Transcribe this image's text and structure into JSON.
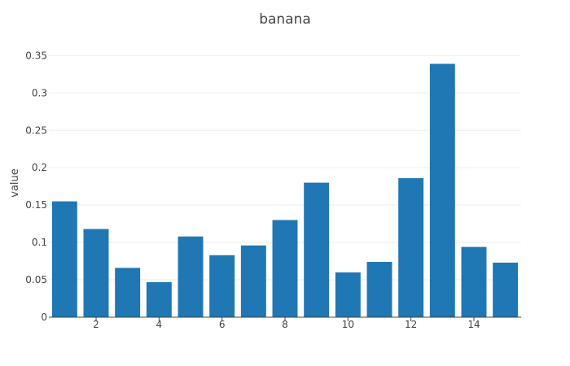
{
  "chart_data": {
    "type": "bar",
    "title": "banana",
    "xlabel": "",
    "ylabel": "value",
    "x": [
      1,
      2,
      3,
      4,
      5,
      6,
      7,
      8,
      9,
      10,
      11,
      12,
      13,
      14,
      15
    ],
    "values": [
      0.155,
      0.118,
      0.066,
      0.047,
      0.108,
      0.083,
      0.096,
      0.13,
      0.18,
      0.06,
      0.074,
      0.186,
      0.339,
      0.094,
      0.073
    ],
    "xlim": [
      0.5,
      15.5
    ],
    "ylim": [
      0,
      0.37
    ],
    "xticks": [
      2,
      4,
      6,
      8,
      10,
      12,
      14
    ],
    "xtick_labels": [
      "2",
      "4",
      "6",
      "8",
      "10",
      "12",
      "14"
    ],
    "yticks": [
      0,
      0.05,
      0.1,
      0.15,
      0.2,
      0.25,
      0.3,
      0.35
    ],
    "ytick_labels": [
      "0",
      "0.05",
      "0.1",
      "0.15",
      "0.2",
      "0.25",
      "0.3",
      "0.35"
    ],
    "grid": true,
    "legend": "none",
    "bar_color": "#1f77b4"
  }
}
